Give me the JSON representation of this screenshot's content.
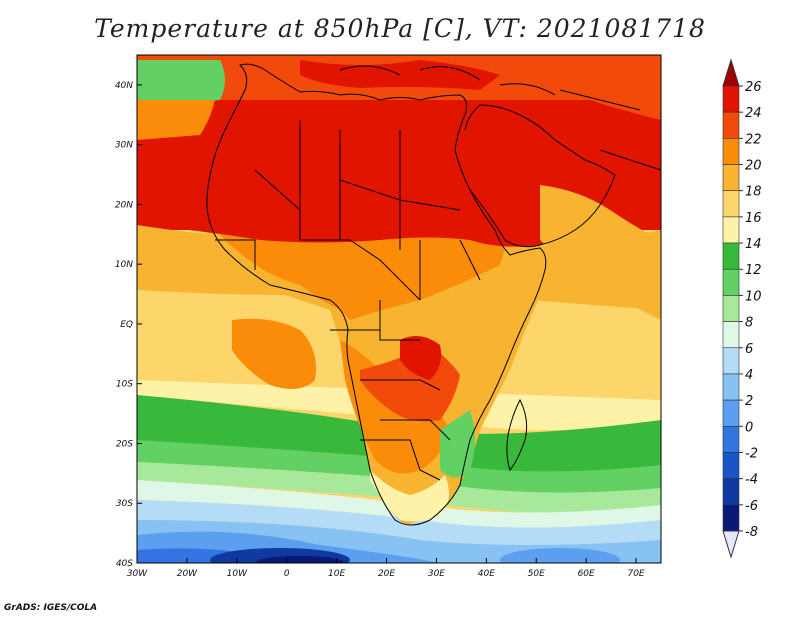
{
  "title": "Temperature at 850hPa [C], VT: 2021081718",
  "credit": "GrADS: IGES/COLA",
  "map": {
    "lon_range": [
      -30,
      75
    ],
    "lat_range": [
      -40,
      45
    ],
    "lon_ticks": [
      {
        "value": -30,
        "label": "30W"
      },
      {
        "value": -20,
        "label": "20W"
      },
      {
        "value": -10,
        "label": "10W"
      },
      {
        "value": 0,
        "label": "0"
      },
      {
        "value": 10,
        "label": "10E"
      },
      {
        "value": 20,
        "label": "20E"
      },
      {
        "value": 30,
        "label": "30E"
      },
      {
        "value": 40,
        "label": "40E"
      },
      {
        "value": 50,
        "label": "50E"
      },
      {
        "value": 60,
        "label": "60E"
      },
      {
        "value": 70,
        "label": "70E"
      }
    ],
    "lat_ticks": [
      {
        "value": 40,
        "label": "40N"
      },
      {
        "value": 30,
        "label": "30N"
      },
      {
        "value": 20,
        "label": "20N"
      },
      {
        "value": 10,
        "label": "10N"
      },
      {
        "value": 0,
        "label": "EQ"
      },
      {
        "value": -10,
        "label": "10S"
      },
      {
        "value": -20,
        "label": "20S"
      },
      {
        "value": -30,
        "label": "30S"
      },
      {
        "value": -40,
        "label": "40S"
      }
    ]
  },
  "colorbar": {
    "labels": [
      "26",
      "24",
      "22",
      "20",
      "18",
      "16",
      "14",
      "12",
      "10",
      "8",
      "6",
      "4",
      "2",
      "0",
      "-2",
      "-4",
      "-6",
      "-8"
    ],
    "colors": [
      "#a00000",
      "#e11400",
      "#f24a0a",
      "#fa8c0a",
      "#f8b330",
      "#fcd66a",
      "#fef2a8",
      "#38b93c",
      "#62d062",
      "#a8e89b",
      "#def7e6",
      "#b4dcf6",
      "#88c2f2",
      "#5c9ef0",
      "#3274e2",
      "#1954c8",
      "#0f38a0",
      "#0a1878",
      "#e6e6fa"
    ]
  }
}
